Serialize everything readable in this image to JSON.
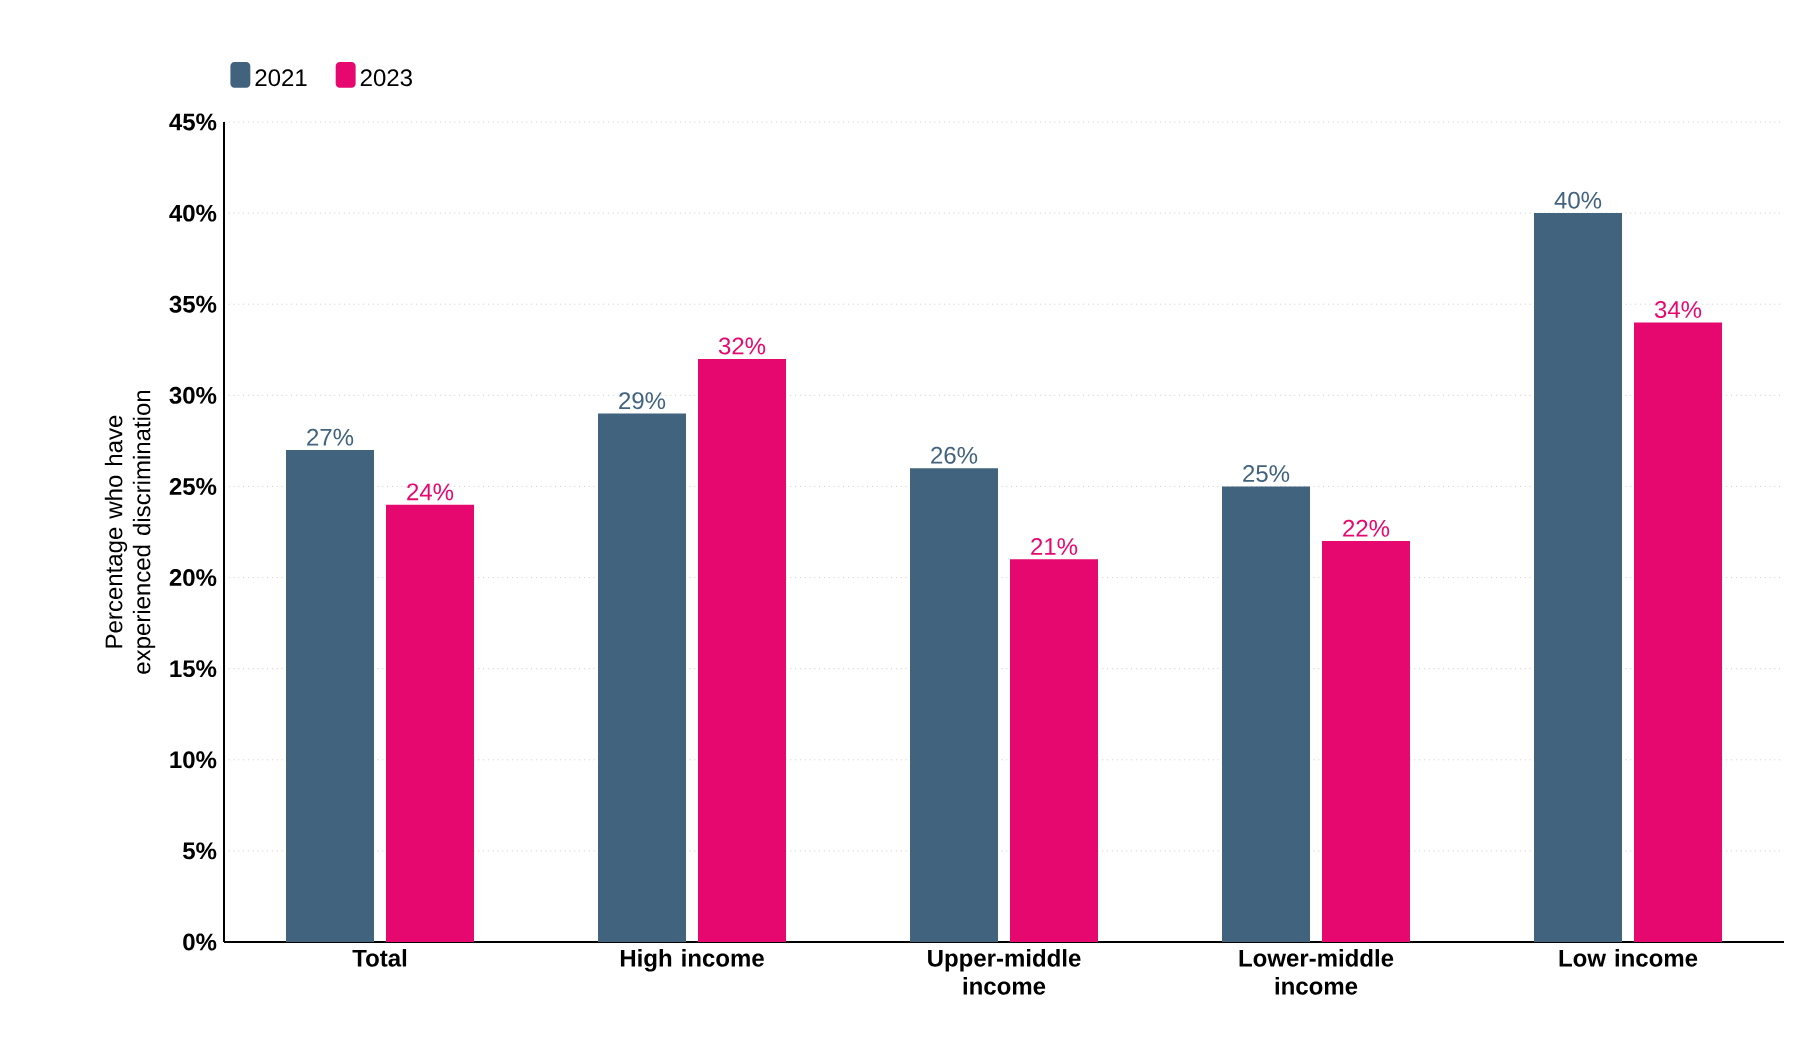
{
  "chart_data": {
    "type": "bar",
    "ylabel": "Percentage who have experienced discrimination",
    "categories": [
      "Total",
      "High income",
      "Upper-middle income",
      "Lower-middle income",
      "Low income"
    ],
    "series": [
      {
        "name": "2021",
        "color": "#41637e",
        "values": [
          27,
          29,
          26,
          25,
          40
        ],
        "value_labels": [
          "27%",
          "29%",
          "26%",
          "25%",
          "40%"
        ]
      },
      {
        "name": "2023",
        "color": "#e6086e",
        "values": [
          24,
          32,
          21,
          22,
          34
        ],
        "value_labels": [
          "24%",
          "32%",
          "21%",
          "22%",
          "34%"
        ]
      }
    ],
    "ylim": [
      0,
      45
    ],
    "yticks": [
      {
        "value": 0,
        "label": "0%"
      },
      {
        "value": 5,
        "label": "5%"
      },
      {
        "value": 10,
        "label": "10%"
      },
      {
        "value": 15,
        "label": "15%"
      },
      {
        "value": 20,
        "label": "20%"
      },
      {
        "value": 25,
        "label": "25%"
      },
      {
        "value": 30,
        "label": "30%"
      },
      {
        "value": 35,
        "label": "35%"
      },
      {
        "value": 40,
        "label": "40%"
      },
      {
        "value": 45,
        "label": "45%"
      }
    ],
    "grid": "y",
    "legend": "top left"
  }
}
